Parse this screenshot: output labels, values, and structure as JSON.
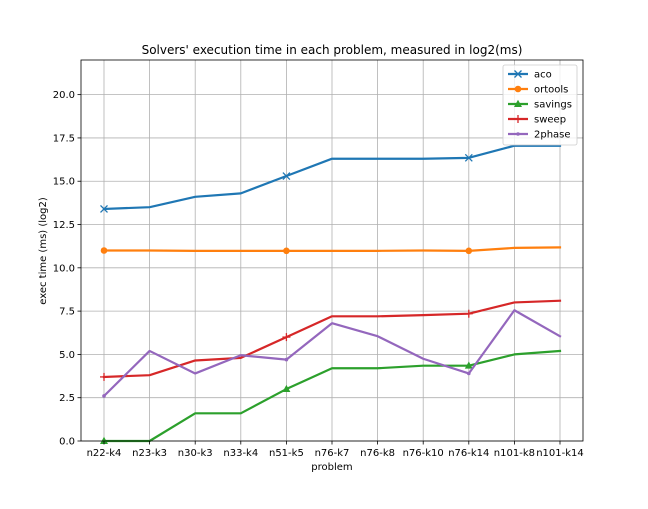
{
  "chart_data": {
    "type": "line",
    "title": "Solvers' execution time in each problem, measured in log2(ms)",
    "xlabel": "problem",
    "ylabel": "exec time (ms) (log2)",
    "categories": [
      "n22-k4",
      "n23-k3",
      "n30-k3",
      "n33-k4",
      "n51-k5",
      "n76-k7",
      "n76-k8",
      "n76-k10",
      "n76-k14",
      "n101-k8",
      "n101-k14"
    ],
    "ylim": [
      0,
      22
    ],
    "yticks": [
      0.0,
      2.5,
      5.0,
      7.5,
      10.0,
      12.5,
      15.0,
      17.5,
      20.0
    ],
    "ytick_labels": [
      "0.0",
      "2.5",
      "5.0",
      "7.5",
      "10.0",
      "12.5",
      "15.0",
      "17.5",
      "20.0"
    ],
    "grid": true,
    "legend_position": "top-right",
    "series": [
      {
        "name": "aco",
        "color": "#1f77b4",
        "marker": "x",
        "marker_at": [
          0,
          4,
          8
        ],
        "values": [
          13.4,
          13.5,
          14.1,
          14.3,
          15.3,
          16.3,
          16.3,
          16.3,
          16.35,
          17.05,
          17.05
        ]
      },
      {
        "name": "ortools",
        "color": "#ff7f0e",
        "marker": "circle",
        "marker_at": [
          0,
          4,
          8
        ],
        "values": [
          11.0,
          11.0,
          10.98,
          10.98,
          10.98,
          10.98,
          10.98,
          11.0,
          10.98,
          11.15,
          11.18
        ]
      },
      {
        "name": "savings",
        "color": "#2ca02c",
        "marker": "triangle",
        "marker_at": [
          0,
          4,
          8
        ],
        "values": [
          0.0,
          0.0,
          1.6,
          1.6,
          3.0,
          4.2,
          4.2,
          4.35,
          4.35,
          5.0,
          5.2
        ]
      },
      {
        "name": "sweep",
        "color": "#d62728",
        "marker": "plus",
        "marker_at": [
          0,
          4,
          8
        ],
        "values": [
          3.7,
          3.8,
          4.65,
          4.8,
          6.0,
          7.2,
          7.2,
          7.27,
          7.35,
          8.0,
          8.1
        ]
      },
      {
        "name": "2phase",
        "color": "#9467bd",
        "marker": "dot",
        "marker_at": [
          0,
          4,
          8
        ],
        "values": [
          2.6,
          5.2,
          3.9,
          4.95,
          4.7,
          6.8,
          6.05,
          4.75,
          3.9,
          7.55,
          6.05
        ]
      }
    ]
  }
}
